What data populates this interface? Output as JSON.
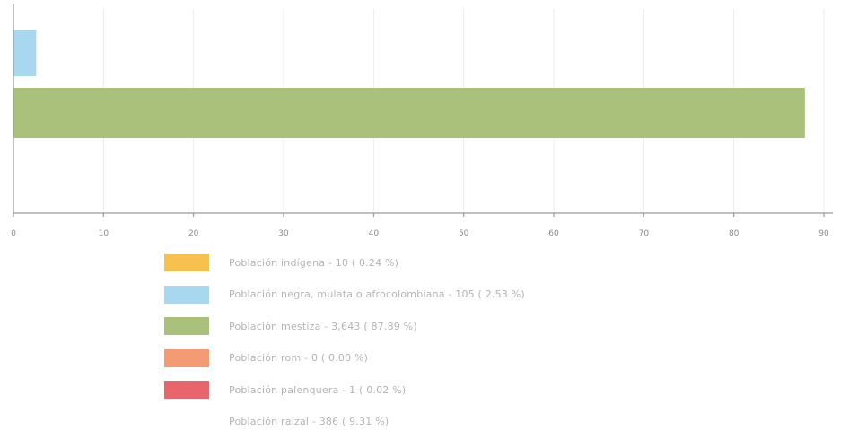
{
  "chart_data": {
    "type": "bar",
    "orientation": "horizontal",
    "xlim": [
      0,
      90
    ],
    "x_ticks": [
      "0",
      "10",
      "20",
      "30",
      "40",
      "50",
      "60",
      "70",
      "80",
      "90"
    ],
    "grid": true,
    "series": [
      {
        "label": "Población indígena - 10 ( 0.24 %)",
        "value": 0.24,
        "color": "#f7c150",
        "shown_bar": false
      },
      {
        "label": "Población negra, mulata o afrocolombiana - 105 ( 2.53 %)",
        "value": 2.53,
        "color": "#a8d8ef",
        "shown_bar": true
      },
      {
        "label": "Población mestiza - 3,643 ( 87.89 %)",
        "value": 87.89,
        "color": "#a9c17a",
        "shown_bar": true
      },
      {
        "label": "Población rom - 0 ( 0.00 %)",
        "value": 0.0,
        "color": "#f59b74",
        "shown_bar": false
      },
      {
        "label": "Población palenquera - 1 ( 0.02 %)",
        "value": 0.02,
        "color": "#e8666b",
        "shown_bar": false
      },
      {
        "label": "Población raizal - 386 ( 9.31 %)",
        "value": 9.31,
        "color": "#ffffff",
        "shown_bar": false
      }
    ]
  }
}
